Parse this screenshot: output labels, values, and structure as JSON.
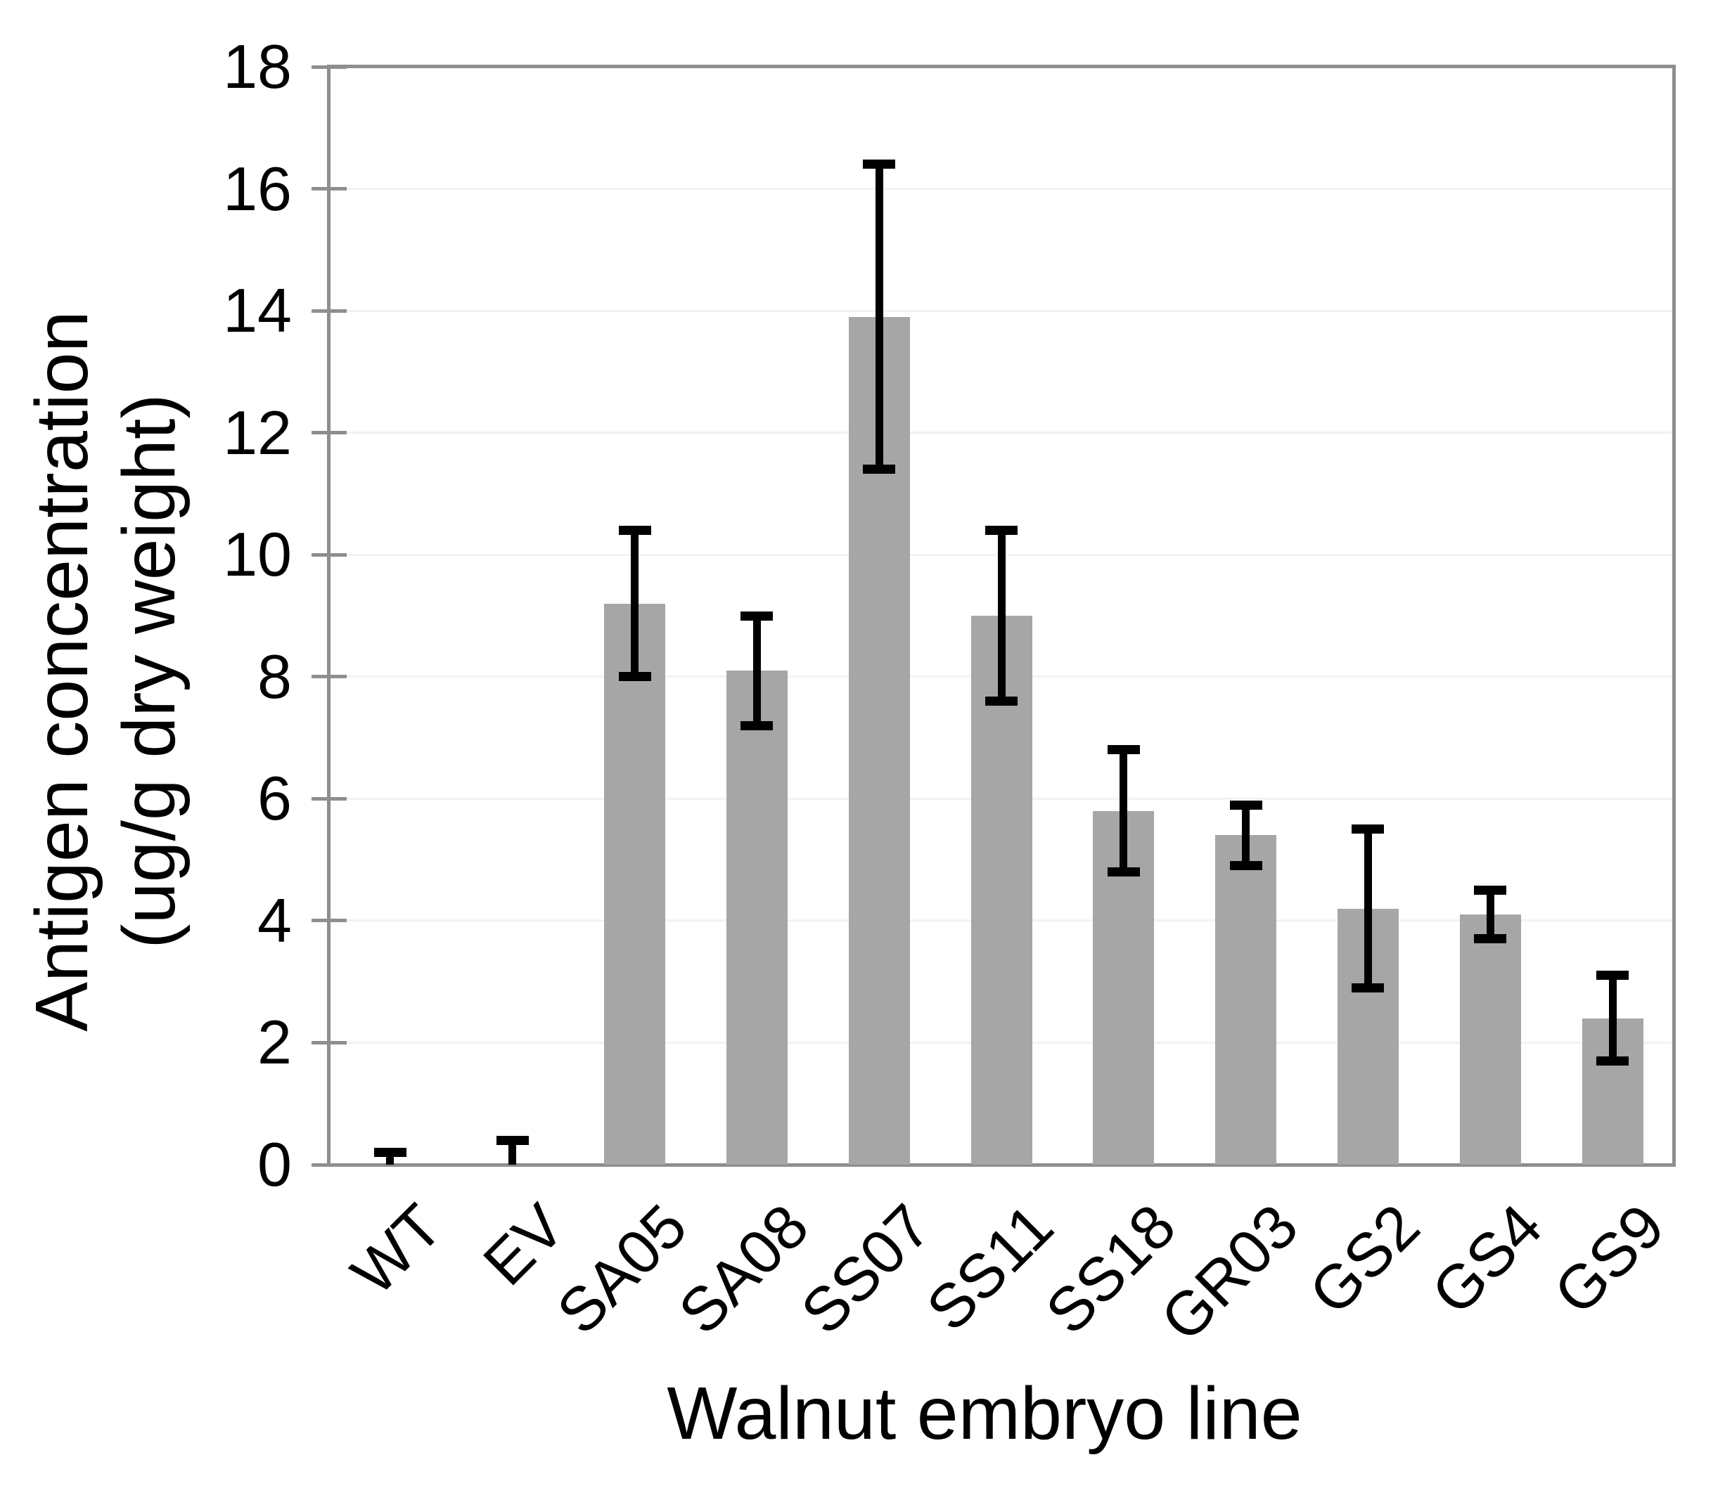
{
  "chart_data": {
    "type": "bar",
    "title": "",
    "xlabel": "Walnut embryo line",
    "ylabel": "Antigen concentration (ug/g dry weight)",
    "ylabel_lines": [
      "Antigen concentration",
      "(ug/g dry weight)"
    ],
    "categories": [
      "WT",
      "EV",
      "SA05",
      "SA08",
      "SS07",
      "SS11",
      "SS18",
      "GR03",
      "GS2",
      "GS4",
      "GS9"
    ],
    "values": [
      0,
      0,
      9.2,
      8.1,
      13.9,
      9.0,
      5.8,
      5.4,
      4.2,
      4.1,
      2.4
    ],
    "error_bar_top": [
      0.2,
      0.4,
      10.4,
      9.0,
      16.4,
      10.4,
      6.8,
      5.9,
      5.5,
      4.5,
      3.1
    ],
    "error_bar_bottom": [
      0,
      0,
      8.0,
      7.2,
      11.4,
      7.6,
      4.8,
      4.9,
      2.9,
      3.7,
      1.7
    ],
    "ylim": [
      0,
      18
    ],
    "yticks": [
      0,
      2,
      4,
      6,
      8,
      10,
      12,
      14,
      16,
      18
    ],
    "grid": "horizontal",
    "legend": "none",
    "bar_color": "#a6a6a6",
    "error_color": "#000000",
    "axis_color": "#8e8e8e",
    "gridline_color": "#f2f2f2",
    "background_color": "#ffffff"
  }
}
